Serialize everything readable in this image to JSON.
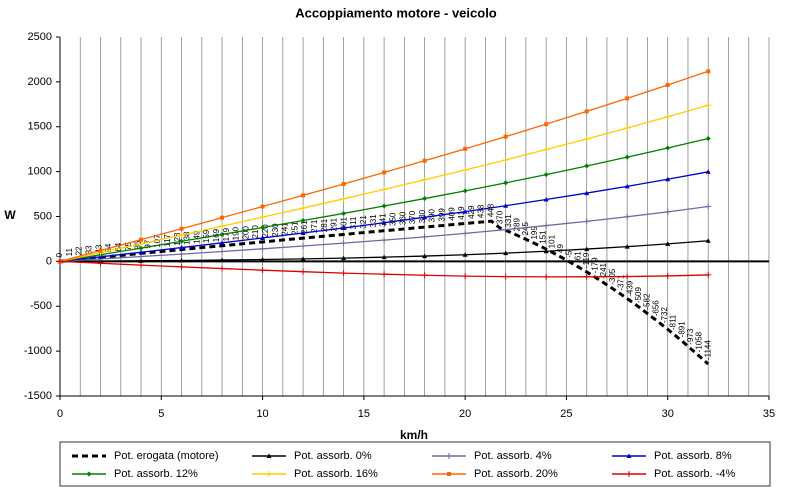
{
  "chart_data": {
    "type": "line",
    "title": "Accoppiamento motore - veicolo",
    "xlabel": "km/h",
    "ylabel": "W",
    "xlim": [
      0,
      35
    ],
    "xticks": [
      0,
      5,
      10,
      15,
      20,
      25,
      30,
      35
    ],
    "x_gridlines": [
      1,
      2,
      3,
      4,
      5,
      6,
      7,
      8,
      9,
      10,
      11,
      12,
      13,
      14,
      15,
      16,
      17,
      18,
      19,
      20,
      21,
      22,
      23,
      24,
      25,
      26,
      27,
      28,
      29,
      30,
      31,
      32,
      33,
      34,
      35
    ],
    "ylim": [
      -1500,
      2500
    ],
    "yticks": [
      -1500,
      -1000,
      -500,
      0,
      500,
      1000,
      1500,
      2000,
      2500
    ],
    "legend": "bottom",
    "series": [
      {
        "name": "Pot. erogata (motore)",
        "color": "#000000",
        "dashed": true,
        "marker": "none",
        "data_labels": true,
        "x": [
          0,
          0.48,
          0.97,
          1.45,
          1.94,
          2.42,
          2.9,
          3.39,
          3.87,
          4.36,
          4.84,
          5.32,
          5.81,
          6.29,
          6.78,
          7.26,
          7.74,
          8.23,
          8.71,
          9.2,
          9.68,
          10.16,
          10.65,
          11.13,
          11.62,
          12.1,
          12.58,
          13.07,
          13.55,
          14.04,
          14.52,
          15.0,
          15.49,
          15.97,
          16.46,
          16.94,
          17.42,
          17.91,
          18.39,
          18.88,
          19.36,
          19.84,
          20.33,
          20.81,
          21.3,
          21.73,
          22.16,
          22.58,
          23.01,
          23.44,
          23.87,
          24.3,
          24.72,
          25.15,
          25.58,
          26.01,
          26.44,
          26.86,
          27.29,
          27.72,
          28.15,
          28.58,
          29.0,
          29.43,
          29.86,
          30.29,
          30.72,
          31.14,
          31.57,
          32.0
        ],
        "values": [
          0,
          11,
          22,
          33,
          43,
          54,
          64,
          75,
          86,
          97,
          107,
          117,
          128,
          138,
          149,
          159,
          169,
          179,
          190,
          200,
          210,
          220,
          230,
          241,
          251,
          261,
          271,
          281,
          291,
          301,
          311,
          321,
          331,
          341,
          350,
          360,
          370,
          380,
          390,
          399,
          409,
          419,
          429,
          438,
          448,
          370,
          331,
          289,
          245,
          199,
          151,
          101,
          49,
          -5,
          -61,
          -119,
          -179,
          -241,
          -305,
          -371,
          -439,
          -509,
          -582,
          -656,
          -732,
          -811,
          -891,
          -973,
          -1058,
          -1144
        ]
      },
      {
        "name": "Pot. assorb. 0%",
        "color": "#000000",
        "marker": "triangle",
        "x": [
          0,
          2,
          4,
          6,
          8,
          10,
          12,
          14,
          16,
          18,
          20,
          22,
          24,
          26,
          28,
          30,
          32
        ],
        "values": [
          0,
          3,
          6,
          10,
          15,
          21,
          28,
          36,
          47,
          59,
          74,
          92,
          113,
          137,
          164,
          195,
          230
        ]
      },
      {
        "name": "Pot. assorb. 4%",
        "color": "#6a6aa8",
        "marker": "plus",
        "x": [
          0,
          2,
          4,
          6,
          8,
          10,
          12,
          14,
          16,
          18,
          20,
          22,
          24,
          26,
          28,
          30,
          32
        ],
        "values": [
          0,
          27,
          54,
          81,
          110,
          140,
          171,
          203,
          237,
          273,
          312,
          354,
          399,
          446,
          497,
          552,
          611
        ]
      },
      {
        "name": "Pot. assorb. 8%",
        "color": "#0000cc",
        "marker": "triangle",
        "x": [
          0,
          2,
          4,
          6,
          8,
          10,
          12,
          14,
          16,
          18,
          20,
          22,
          24,
          26,
          28,
          30,
          32
        ],
        "values": [
          0,
          51,
          102,
          154,
          207,
          261,
          316,
          372,
          431,
          491,
          554,
          620,
          689,
          761,
          836,
          915,
          998
        ]
      },
      {
        "name": "Pot. assorb. 12%",
        "color": "#008000",
        "marker": "diamond",
        "x": [
          0,
          2,
          4,
          6,
          8,
          10,
          12,
          14,
          16,
          18,
          20,
          22,
          24,
          26,
          28,
          30,
          32
        ],
        "values": [
          0,
          74,
          148,
          224,
          300,
          377,
          455,
          534,
          617,
          700,
          786,
          875,
          967,
          1063,
          1161,
          1263,
          1369
        ]
      },
      {
        "name": "Pot. assorb. 16%",
        "color": "#ffcc00",
        "marker": "plus",
        "x": [
          0,
          2,
          4,
          6,
          8,
          10,
          12,
          14,
          16,
          18,
          20,
          22,
          24,
          26,
          28,
          30,
          32
        ],
        "values": [
          0,
          97,
          195,
          293,
          393,
          493,
          594,
          697,
          802,
          909,
          1018,
          1130,
          1246,
          1364,
          1486,
          1611,
          1740
        ]
      },
      {
        "name": "Pot. assorb. 20%",
        "color": "#ff6600",
        "marker": "square",
        "x": [
          0,
          2,
          4,
          6,
          8,
          10,
          12,
          14,
          16,
          18,
          20,
          22,
          24,
          26,
          28,
          30,
          32
        ],
        "values": [
          0,
          121,
          242,
          364,
          487,
          611,
          736,
          862,
          991,
          1121,
          1254,
          1390,
          1529,
          1671,
          1816,
          1965,
          2118
        ]
      },
      {
        "name": "Pot. assorb. -4%",
        "color": "#dd0000",
        "marker": "plus",
        "x": [
          0,
          2,
          4,
          6,
          8,
          10,
          12,
          14,
          16,
          18,
          20,
          22,
          24,
          26,
          28,
          30,
          32
        ],
        "values": [
          0,
          -21,
          -42,
          -61,
          -80,
          -98,
          -115,
          -131,
          -143,
          -155,
          -164,
          -170,
          -173,
          -172,
          -169,
          -162,
          -151
        ]
      }
    ]
  }
}
